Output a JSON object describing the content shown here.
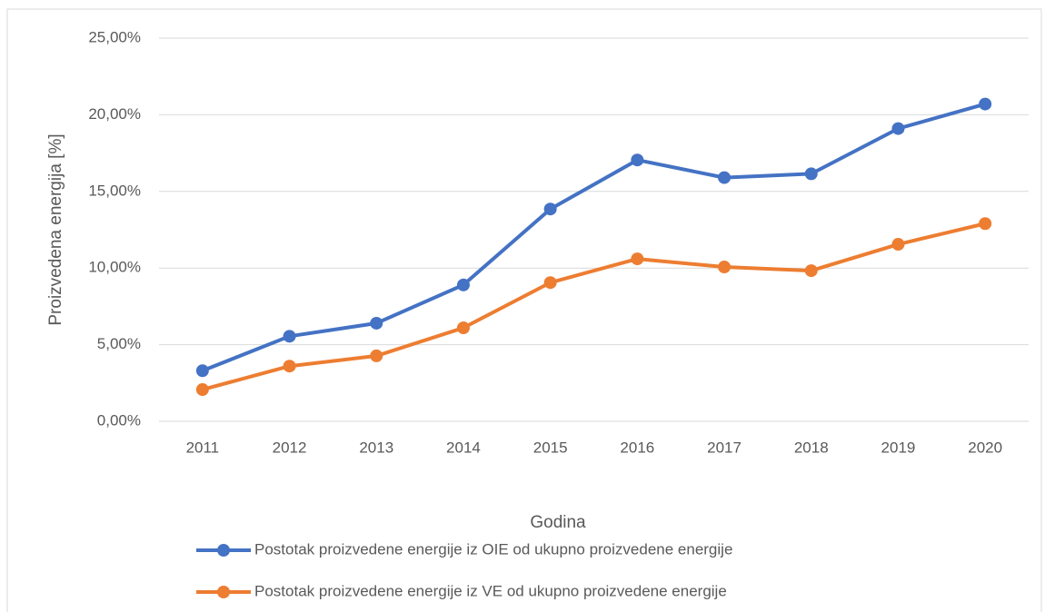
{
  "chart_data": {
    "type": "line",
    "x_label": "Godina",
    "y_label": "Proizvedena energija [%]",
    "categories": [
      "2011",
      "2012",
      "2013",
      "2014",
      "2015",
      "2016",
      "2017",
      "2018",
      "2019",
      "2020"
    ],
    "series": [
      {
        "name": "Postotak proizvedene energije iz OIE od ukupno proizvedene energije",
        "color": "#4472c4",
        "values": [
          3.3,
          5.55,
          6.4,
          8.9,
          13.85,
          17.05,
          15.9,
          16.15,
          19.1,
          20.7
        ]
      },
      {
        "name": "Postotak proizvedene energije iz VE od ukupno proizvedene energije",
        "color": "#ed7d31",
        "values": [
          2.07,
          3.6,
          4.27,
          6.1,
          9.05,
          10.6,
          10.07,
          9.83,
          11.55,
          12.9
        ]
      }
    ],
    "ylim": [
      0,
      25
    ],
    "yticks": [
      {
        "value": 0,
        "label": "0,00%"
      },
      {
        "value": 5,
        "label": "5,00%"
      },
      {
        "value": 10,
        "label": "10,00%"
      },
      {
        "value": 15,
        "label": "15,00%"
      },
      {
        "value": 20,
        "label": "20,00%"
      },
      {
        "value": 25,
        "label": "25,00%"
      }
    ],
    "grid": true
  }
}
